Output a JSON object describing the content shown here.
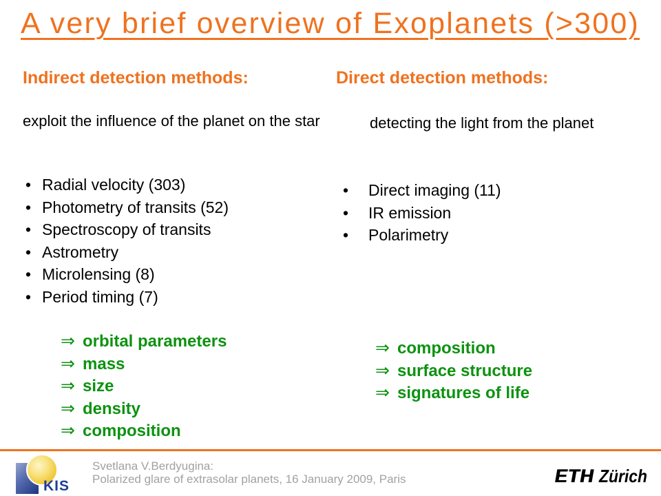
{
  "slide": {
    "title": "A very brief overview of Exoplanets (>300)",
    "glyphs": {
      "bullet": "•",
      "arrow": "⇒"
    },
    "left": {
      "header": "Indirect detection methods:",
      "description": "exploit the influence of the planet on the star",
      "bullets": [
        "Radial velocity (303)",
        "Photometry of transits (52)",
        "Spectroscopy of transits",
        "Astrometry",
        "Microlensing (8)",
        "Period timing (7)"
      ],
      "implications": [
        "orbital parameters",
        "mass",
        "size",
        "density",
        "composition"
      ]
    },
    "right": {
      "header": "Direct detection methods:",
      "description": "detecting the light from the planet",
      "bullets": [
        "Direct imaging (11)",
        "IR emission",
        "Polarimetry"
      ],
      "implications": [
        "composition",
        "surface structure",
        "signatures of life"
      ]
    },
    "footer": {
      "credit_line1": "Svetlana V.Berdyugina:",
      "credit_line2": "Polarized glare of extrasolar planets, 16 January 2009, Paris",
      "kis_label": "KIS",
      "eth_label": "ETH",
      "eth_city": "Zürich"
    },
    "colors": {
      "accent_orange": "#EF721F",
      "result_green": "#0D9210",
      "footer_gray": "#A1A1A1",
      "kis_blue": "#1E3E96"
    }
  }
}
